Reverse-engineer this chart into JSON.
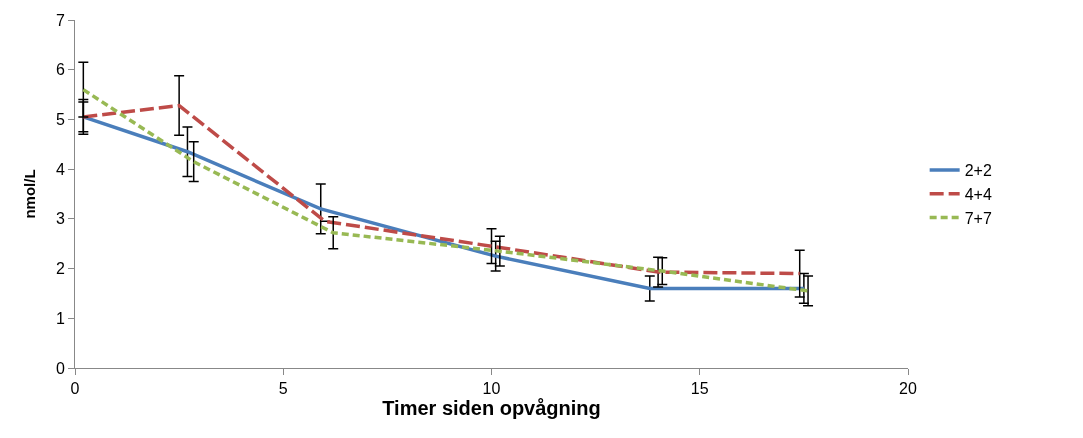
{
  "chart_data": {
    "type": "line",
    "xlabel": "Timer siden opvågning",
    "ylabel": "nmol/L",
    "xlim": [
      0,
      20
    ],
    "xticks": [
      0,
      5,
      10,
      15,
      20
    ],
    "ylim": [
      0,
      7
    ],
    "yticks": [
      0,
      1,
      2,
      3,
      4,
      5,
      6,
      7
    ],
    "grid": false,
    "legend": "right",
    "marker": "none",
    "series": [
      {
        "name": "2+2",
        "color": "#4a7ebb",
        "line_style": "solid",
        "x": [
          0.2,
          2.7,
          5.9,
          10.1,
          13.8,
          17.5
        ],
        "values": [
          5.05,
          4.35,
          3.2,
          2.25,
          1.6,
          1.6
        ],
        "errors": [
          0.35,
          0.5,
          0.5,
          0.3,
          0.25,
          0.3
        ]
      },
      {
        "name": "4+4",
        "color": "#be4b48",
        "line_style": "dashed",
        "x": [
          0.2,
          2.5,
          6.0,
          10.0,
          14.0,
          17.4
        ],
        "values": [
          5.05,
          5.28,
          2.95,
          2.45,
          1.93,
          1.9
        ],
        "errors": [
          0.3,
          0.6,
          null,
          0.35,
          0.3,
          0.47
        ]
      },
      {
        "name": "7+7",
        "color": "#98b954",
        "line_style": "dotted",
        "x": [
          0.2,
          2.85,
          6.2,
          10.2,
          14.1,
          17.6
        ],
        "values": [
          5.6,
          4.15,
          2.72,
          2.35,
          1.95,
          1.55
        ],
        "errors": [
          0.55,
          0.4,
          0.32,
          0.3,
          0.27,
          0.3
        ]
      }
    ]
  }
}
